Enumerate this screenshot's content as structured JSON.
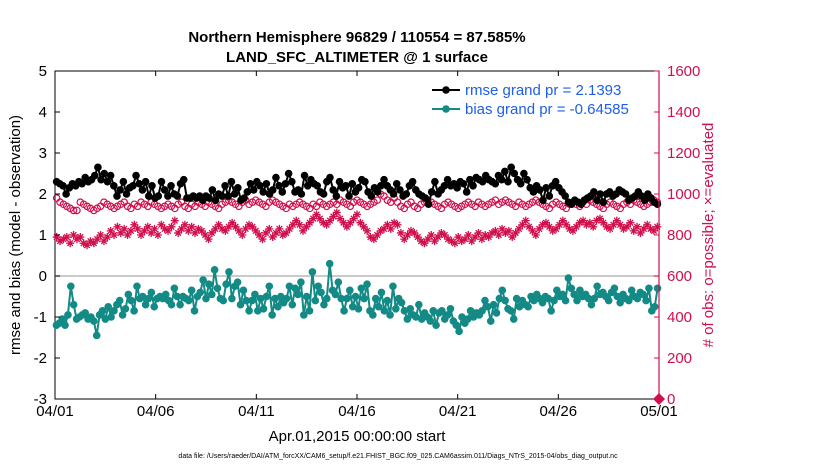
{
  "chart_data": {
    "type": "line",
    "title": "Northern Hemisphere 96829 / 110554 = 87.585%",
    "subtitle": "LAND_SFC_ALTIMETER @ 1 surface",
    "xlabel": "Apr.01,2015 00:00:00 start",
    "ylabel": "rmse and bias (model - observation)",
    "ylabel_right": "# of obs: o=possible; ×=evaluated",
    "footnote": "data file: /Users/raeder/DAI/ATM_forcXX/CAM6_setup/f.e21.FHIST_BGC.f09_025.CAM6assim.011/Diags_NTrS_2015-04/obs_diag_output.nc",
    "xlim": [
      0,
      30
    ],
    "ylim": [
      -3,
      5
    ],
    "ylim_right": [
      0,
      1600
    ],
    "x_ticks": [
      0,
      5,
      10,
      15,
      20,
      25,
      30
    ],
    "x_tick_labels": [
      "04/01",
      "04/06",
      "04/11",
      "04/16",
      "04/21",
      "04/26",
      "05/01"
    ],
    "y_ticks": [
      -3,
      -2,
      -1,
      0,
      1,
      2,
      3,
      4,
      5
    ],
    "y_tick_labels": [
      "-3",
      "-2",
      "-1",
      "0",
      "1",
      "2",
      "3",
      "4",
      "5"
    ],
    "y_ticks_right": [
      0,
      200,
      400,
      600,
      800,
      1000,
      1200,
      1400,
      1600
    ],
    "y_tick_labels_right": [
      "0",
      "200",
      "400",
      "600",
      "800",
      "1000",
      "1200",
      "1400",
      "1600"
    ],
    "legend": {
      "location": "top-right",
      "entries": [
        "rmse grand pr = 2.1393",
        "bias grand pr = -0.64585"
      ]
    },
    "colors": {
      "rmse": "#000000",
      "bias": "#138a85",
      "counts": "#d0104c",
      "zero_line": "#b8b8b8"
    },
    "series": [
      {
        "name": "rmse",
        "values": [
          2.3,
          2.25,
          2.2,
          2.0,
          2.15,
          2.25,
          2.2,
          2.3,
          2.25,
          2.4,
          2.3,
          2.35,
          2.45,
          2.65,
          2.35,
          2.5,
          2.3,
          2.45,
          2.2,
          1.95,
          2.1,
          2.3,
          2.0,
          2.15,
          2.2,
          2.45,
          2.25,
          2.1,
          2.3,
          1.95,
          2.2,
          1.9,
          1.95,
          2.3,
          2.1,
          1.95,
          2.2,
          2.0,
          1.95,
          2.25,
          2.35,
          1.9,
          1.9,
          1.95,
          1.9,
          1.95,
          1.85,
          1.95,
          1.9,
          2.1,
          1.85,
          2.0,
          1.95,
          2.2,
          1.95,
          2.3,
          2.0,
          2.15,
          1.85,
          1.9,
          2.05,
          2.25,
          2.1,
          2.3,
          2.2,
          2.05,
          2.25,
          2.0,
          2.1,
          2.4,
          2.2,
          2.05,
          2.25,
          2.5,
          2.3,
          2.05,
          2.1,
          2.0,
          2.45,
          2.2,
          2.35,
          2.25,
          2.2,
          2.05,
          2.0,
          2.3,
          2.4,
          2.1,
          1.95,
          2.3,
          2.15,
          2.2,
          1.95,
          2.25,
          2.05,
          2.15,
          2.35,
          2.3,
          2.05,
          1.95,
          2.15,
          2.05,
          2.2,
          2.35,
          2.2,
          2.1,
          2.0,
          2.25,
          2.1,
          1.95,
          2.0,
          2.2,
          2.3,
          2.1,
          2.0,
          1.95,
          1.9,
          1.75,
          2.05,
          2.3,
          2.0,
          2.1,
          2.2,
          2.35,
          2.2,
          2.25,
          2.15,
          2.3,
          2.25,
          2.05,
          2.35,
          2.2,
          2.4,
          2.35,
          2.3,
          2.45,
          2.35,
          2.3,
          2.25,
          2.45,
          2.35,
          2.55,
          2.3,
          2.65,
          2.5,
          2.35,
          2.25,
          2.5,
          2.35,
          2.15,
          2.05,
          2.2,
          2.1,
          1.85,
          2.15,
          1.95,
          2.2,
          2.3,
          2.15,
          2.05,
          1.95,
          1.8,
          1.75,
          1.85,
          1.8,
          1.75,
          1.85,
          1.9,
          1.95,
          2.05,
          1.85,
          2.0,
          1.8,
          2.0,
          2.05,
          1.95,
          2.0,
          2.1,
          2.05,
          2.0,
          1.85,
          1.9,
          1.95,
          2.05,
          1.95,
          1.85,
          2.0,
          1.9,
          1.8,
          1.75
        ]
      },
      {
        "name": "bias",
        "values": [
          -1.2,
          -1.15,
          -1.05,
          -1.2,
          -0.95,
          -0.25,
          -0.7,
          -1.05,
          -1.0,
          -0.95,
          -0.9,
          -1.05,
          -1.0,
          -1.1,
          -1.45,
          -0.95,
          -0.85,
          -1.05,
          -0.75,
          -1.0,
          -0.85,
          -0.7,
          -0.6,
          -0.95,
          -0.8,
          -0.45,
          -0.6,
          -0.85,
          -0.25,
          -0.55,
          -0.5,
          -0.7,
          -0.55,
          -0.4,
          -0.75,
          -0.55,
          -0.5,
          -0.55,
          -0.45,
          -0.6,
          -0.7,
          -0.3,
          -0.5,
          -0.7,
          -0.5,
          -0.55,
          -0.6,
          -0.35,
          -0.85,
          -0.5,
          -0.4,
          -0.1,
          -0.55,
          -0.2,
          -0.45,
          0.15,
          -0.3,
          -0.55,
          -0.6,
          -0.2,
          0.1,
          -0.55,
          -0.25,
          -0.15,
          -0.7,
          -0.35,
          -0.6,
          -0.85,
          -0.6,
          -0.45,
          -0.85,
          -0.55,
          -0.8,
          -0.5,
          -0.25,
          -0.95,
          -0.55,
          -0.75,
          -0.5,
          -0.65,
          -0.55,
          -0.25,
          -0.7,
          -0.3,
          -0.45,
          -0.15,
          -0.95,
          -0.5,
          -0.85,
          0.1,
          -0.6,
          -0.25,
          -0.4,
          -0.7,
          -0.55,
          0.3,
          -0.35,
          -0.45,
          -0.15,
          -0.55,
          -0.85,
          -0.55,
          -0.35,
          -0.75,
          -0.5,
          -0.8,
          -0.3,
          -0.55,
          -0.2,
          -0.85,
          -0.95,
          -0.55,
          -0.75,
          -0.4,
          -0.85,
          -0.6,
          -0.95,
          -0.25,
          -0.8,
          -0.55,
          -0.65,
          -0.85,
          -1.05,
          -0.8,
          -0.95,
          -1.0,
          -0.7,
          -1.05,
          -0.9,
          -1.0,
          -1.1,
          -0.85,
          -1.2,
          -0.9,
          -0.85,
          -1.05,
          -0.95,
          -0.8,
          -1.1,
          -1.2,
          -1.35,
          -1.0,
          -1.15,
          -1.05,
          -0.85,
          -1.0,
          -0.9,
          -0.95,
          -0.85,
          -0.6,
          -0.75,
          -1.1,
          -0.7,
          -0.9,
          -0.55,
          -0.35,
          -0.6,
          -0.8,
          -0.85,
          -1.05,
          -0.55,
          -0.75,
          -0.6,
          -0.7,
          -0.75,
          -0.5,
          -0.6,
          -0.45,
          -0.55,
          -0.65,
          -0.5,
          -0.55,
          -0.85,
          -0.6,
          -0.35,
          -0.5,
          -0.45,
          -0.6,
          -0.05,
          -0.3,
          -0.45,
          -0.6,
          -0.35,
          -0.5,
          -0.45,
          -0.55,
          -0.7,
          -0.55,
          -0.25,
          -0.45,
          -0.4,
          -0.5,
          -0.6,
          -0.4,
          -0.3,
          -0.5,
          -0.65,
          -0.45,
          -0.55,
          -0.6,
          -0.35,
          -0.5,
          -0.55,
          -0.4,
          -0.45,
          -0.6,
          -0.3,
          -0.85,
          -0.75,
          -0.3
        ]
      },
      {
        "name": "obs_possible",
        "values": [
          980,
          960,
          950,
          940,
          930,
          920,
          920,
          960,
          950,
          940,
          930,
          920,
          930,
          940,
          960,
          950,
          940,
          930,
          940,
          950,
          960,
          940,
          930,
          950,
          940,
          960,
          950,
          940,
          960,
          950,
          940,
          930,
          940,
          950,
          940,
          930,
          950,
          960,
          940,
          930,
          950,
          940,
          960,
          950,
          940,
          960,
          950,
          940,
          930,
          950,
          960,
          970,
          960,
          950,
          940,
          960,
          970,
          950,
          960,
          970,
          960,
          950,
          940,
          960,
          970,
          960,
          950,
          940,
          930,
          950,
          940,
          950,
          960,
          950,
          940,
          930,
          950,
          940,
          960,
          950,
          940,
          950,
          960,
          950,
          970,
          960,
          950,
          940,
          960,
          970,
          960,
          950,
          940,
          950,
          960,
          970,
          1000,
          990,
          970,
          960,
          980,
          960,
          940,
          930,
          950,
          960,
          940,
          930,
          950,
          960,
          970,
          960,
          950,
          940,
          930,
          950,
          960,
          950,
          940,
          930,
          940,
          950,
          960,
          950,
          940,
          960,
          950,
          940,
          950,
          960,
          970,
          950,
          960,
          970,
          960,
          950,
          940,
          960,
          950,
          940,
          950,
          960,
          970,
          960,
          950,
          940,
          930,
          950,
          960,
          950,
          940,
          930,
          950,
          960,
          950,
          940,
          960,
          950,
          970,
          960,
          950,
          940,
          930,
          950,
          960,
          950,
          940,
          930,
          950,
          960,
          950,
          970,
          960,
          950,
          940,
          950,
          960,
          970,
          960
        ]
      },
      {
        "name": "obs_evaluated",
        "values": [
          790,
          770,
          780,
          790,
          760,
          800,
          780,
          790,
          760,
          750,
          770,
          760,
          780,
          800,
          770,
          790,
          820,
          800,
          840,
          810,
          830,
          800,
          820,
          850,
          830,
          800,
          820,
          840,
          810,
          830,
          800,
          850,
          830,
          820,
          840,
          870,
          810,
          830,
          850,
          820,
          840,
          810,
          830,
          820,
          800,
          780,
          810,
          830,
          850,
          830,
          820,
          840,
          860,
          840,
          820,
          800,
          830,
          850,
          840,
          820,
          800,
          780,
          810,
          830,
          790,
          810,
          830,
          800,
          810,
          830,
          850,
          870,
          850,
          820,
          840,
          860,
          880,
          900,
          880,
          860,
          850,
          870,
          890,
          910,
          880,
          860,
          840,
          860,
          880,
          900,
          860,
          840,
          820,
          790,
          780,
          800,
          820,
          830,
          850,
          830,
          860,
          850,
          810,
          780,
          800,
          820,
          810,
          790,
          770,
          760,
          780,
          800,
          770,
          790,
          810,
          800,
          780,
          770,
          760,
          790,
          770,
          780,
          800,
          770,
          790,
          810,
          780,
          800,
          790,
          810,
          820,
          800,
          830,
          810,
          820,
          790,
          810,
          830,
          850,
          870,
          840,
          820,
          800,
          830,
          850,
          860,
          840,
          820,
          830,
          850,
          870,
          850,
          830,
          820,
          840,
          860,
          870,
          850,
          860,
          840,
          870,
          880,
          860,
          840,
          830,
          850,
          870,
          850,
          830,
          840,
          860,
          820,
          840,
          810,
          830,
          850,
          830,
          820,
          840
        ]
      }
    ]
  }
}
